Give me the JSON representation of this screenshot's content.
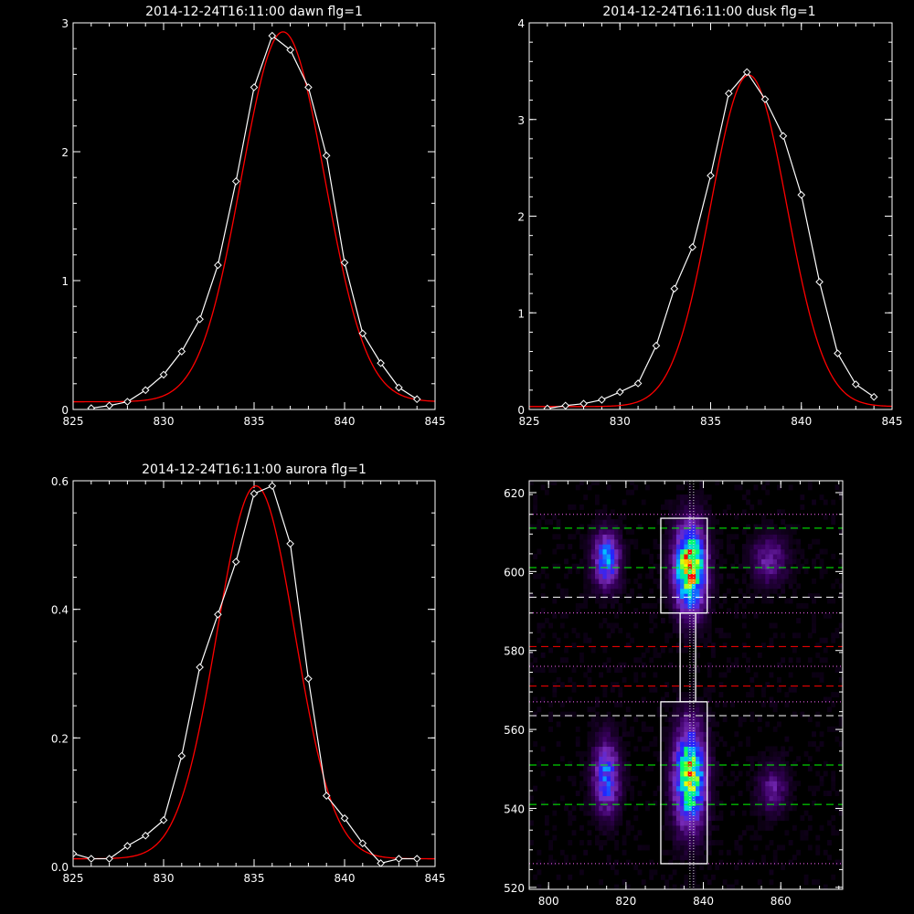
{
  "chart_data": [
    {
      "type": "line",
      "title": "2014-12-24T16:11:00 dawn flg=1",
      "xlim": [
        825,
        845
      ],
      "ylim": [
        0,
        3
      ],
      "xticks": [
        "825",
        "830",
        "835",
        "840",
        "845"
      ],
      "yticks": [
        "0",
        "1",
        "2",
        "3"
      ],
      "series": [
        {
          "role": "observed",
          "color": "#ffffff",
          "x": [
            826,
            827,
            828,
            829,
            830,
            831,
            832,
            833,
            834,
            835,
            836,
            837,
            838,
            839,
            840,
            841,
            842,
            843,
            844
          ],
          "y": [
            0.01,
            0.03,
            0.06,
            0.15,
            0.27,
            0.45,
            0.7,
            1.12,
            1.77,
            2.5,
            2.9,
            2.79,
            2.5,
            1.97,
            1.14,
            0.59,
            0.36,
            0.17,
            0.08
          ]
        },
        {
          "role": "fit",
          "color": "#ff0000",
          "gauss": {
            "amp": 2.87,
            "center": 836.6,
            "sigma": 2.3,
            "base": 0.06
          }
        }
      ]
    },
    {
      "type": "line",
      "title": "2014-12-24T16:11:00 dusk flg=1",
      "xlim": [
        825,
        845
      ],
      "ylim": [
        0,
        4
      ],
      "xticks": [
        "825",
        "830",
        "835",
        "840",
        "845"
      ],
      "yticks": [
        "0",
        "1",
        "2",
        "3",
        "4"
      ],
      "series": [
        {
          "role": "observed",
          "color": "#ffffff",
          "x": [
            826,
            827,
            828,
            829,
            830,
            831,
            832,
            833,
            834,
            835,
            836,
            837,
            838,
            839,
            840,
            841,
            842,
            843,
            844
          ],
          "y": [
            0.01,
            0.04,
            0.06,
            0.1,
            0.18,
            0.27,
            0.66,
            1.25,
            1.68,
            2.42,
            3.27,
            3.49,
            3.21,
            2.83,
            2.22,
            1.32,
            0.58,
            0.26,
            0.13
          ]
        },
        {
          "role": "fit",
          "color": "#ff0000",
          "gauss": {
            "amp": 3.43,
            "center": 837.1,
            "sigma": 2.1,
            "base": 0.03
          }
        }
      ]
    },
    {
      "type": "line",
      "title": "2014-12-24T16:11:00 aurora flg=1",
      "xlim": [
        825,
        845
      ],
      "ylim": [
        0,
        0.6
      ],
      "xticks": [
        "825",
        "830",
        "835",
        "840",
        "845"
      ],
      "yticks": [
        "0.0",
        "0.2",
        "0.4",
        "0.6"
      ],
      "series": [
        {
          "role": "observed",
          "color": "#ffffff",
          "x": [
            825,
            826,
            827,
            828,
            829,
            830,
            831,
            832,
            833,
            834,
            835,
            836,
            837,
            838,
            839,
            840,
            841,
            842,
            843,
            844
          ],
          "y": [
            0.02,
            0.012,
            0.012,
            0.032,
            0.048,
            0.072,
            0.172,
            0.31,
            0.392,
            0.474,
            0.58,
            0.592,
            0.502,
            0.292,
            0.11,
            0.075,
            0.036,
            0.005,
            0.012,
            0.012
          ]
        },
        {
          "role": "fit",
          "color": "#ff0000",
          "gauss": {
            "amp": 0.58,
            "center": 835.1,
            "sigma": 2.15,
            "base": 0.012
          }
        }
      ]
    },
    {
      "type": "heatmap",
      "title": "",
      "xlim": [
        795,
        876
      ],
      "ylim": [
        519.5,
        623
      ],
      "xticks": [
        "800",
        "820",
        "840",
        "860"
      ],
      "yticks": [
        "520",
        "540",
        "560",
        "580",
        "600",
        "620"
      ],
      "colormap": [
        "#000000",
        "#3c0064",
        "#7a2dbd",
        "#2222ff",
        "#00ccff",
        "#00ff66",
        "#ffff00",
        "#ff0000"
      ],
      "blobs": [
        {
          "x": 815,
          "y": 603,
          "sx": 2.2,
          "sy": 4.5,
          "amp": 0.5
        },
        {
          "x": 836.5,
          "y": 601,
          "sx": 2.6,
          "sy": 7,
          "amp": 0.95
        },
        {
          "x": 857,
          "y": 603,
          "sx": 3,
          "sy": 4,
          "amp": 0.22
        },
        {
          "x": 815,
          "y": 548,
          "sx": 2.2,
          "sy": 6,
          "amp": 0.45
        },
        {
          "x": 836.5,
          "y": 548,
          "sx": 2.6,
          "sy": 8,
          "amp": 0.85
        },
        {
          "x": 858,
          "y": 545,
          "sx": 2.5,
          "sy": 4,
          "amp": 0.2
        }
      ],
      "overlay": {
        "vline_x": 837,
        "vline_color": "#dddddd",
        "boxes": [
          {
            "x1": 829,
            "x2": 841,
            "y1": 589.5,
            "y2": 613.5
          },
          {
            "x1": 829,
            "x2": 841,
            "y1": 526,
            "y2": 567
          }
        ],
        "connector": {
          "x1": 834,
          "x2": 838,
          "y1": 567,
          "y2": 589.5
        },
        "hlines": [
          {
            "y": 611,
            "color": "#00ff00",
            "style": "dash"
          },
          {
            "y": 601,
            "color": "#00ff00",
            "style": "dash"
          },
          {
            "y": 593.5,
            "color": "#ffffff",
            "style": "dash"
          },
          {
            "y": 589.5,
            "color": "#ff66ff",
            "style": "dot"
          },
          {
            "y": 581,
            "color": "#ff0000",
            "style": "dash"
          },
          {
            "y": 576,
            "color": "#ff66ff",
            "style": "dot"
          },
          {
            "y": 571,
            "color": "#ff0000",
            "style": "dash"
          },
          {
            "y": 567,
            "color": "#ff66ff",
            "style": "dot"
          },
          {
            "y": 563.5,
            "color": "#ffffff",
            "style": "dash"
          },
          {
            "y": 551,
            "color": "#00ff00",
            "style": "dash"
          },
          {
            "y": 541,
            "color": "#00ff00",
            "style": "dash"
          },
          {
            "y": 526,
            "color": "#ff66ff",
            "style": "dot"
          },
          {
            "y": 614.5,
            "color": "#ff66ff",
            "style": "dot"
          }
        ]
      }
    }
  ]
}
